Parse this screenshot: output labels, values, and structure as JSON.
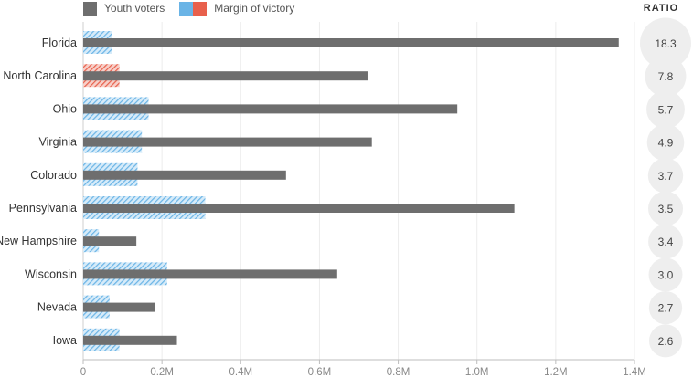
{
  "legend": {
    "youth_label": "Youth voters",
    "margin_label": "Margin of victory",
    "youth_color": "#6e6e6e",
    "margin_blue_color": "#6ab4e6",
    "margin_red_color": "#e8604c"
  },
  "ratio_header": "RATIO",
  "chart_data": {
    "type": "bar",
    "orientation": "horizontal",
    "categories": [
      "Florida",
      "North Carolina",
      "Ohio",
      "Virginia",
      "Colorado",
      "Pennsylvania",
      "New Hampshire",
      "Wisconsin",
      "Nevada",
      "Iowa"
    ],
    "series": [
      {
        "name": "Youth voters",
        "values": [
          1360000,
          722000,
          950000,
          733000,
          515000,
          1095000,
          135000,
          645000,
          183000,
          238000
        ]
      },
      {
        "name": "Margin of victory",
        "values": [
          74000,
          92000,
          166000,
          149000,
          138000,
          310000,
          40000,
          213000,
          67000,
          92000
        ],
        "party": [
          "blue",
          "red",
          "blue",
          "blue",
          "blue",
          "blue",
          "blue",
          "blue",
          "blue",
          "blue"
        ]
      }
    ],
    "ratio": [
      "18.3",
      "7.8",
      "5.7",
      "4.9",
      "3.7",
      "3.5",
      "3.4",
      "3.0",
      "2.7",
      "2.6"
    ],
    "ratio_values": [
      18.3,
      7.8,
      5.7,
      4.9,
      3.7,
      3.5,
      3.4,
      3.0,
      2.7,
      2.6
    ],
    "xticks": [
      "0",
      "0.2M",
      "0.4M",
      "0.6M",
      "0.8M",
      "1.0M",
      "1.2M",
      "1.4M"
    ],
    "xlim": [
      0,
      1400000
    ],
    "grid": true
  }
}
